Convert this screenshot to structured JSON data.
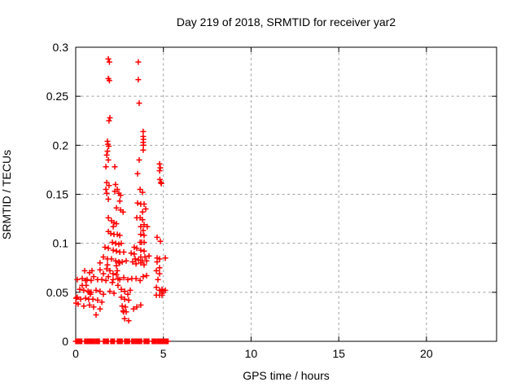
{
  "colors": {
    "marker": "#ff0000",
    "grid": "#a0a0a0",
    "border": "#000000",
    "background": "#ffffff"
  },
  "chart_data": {
    "type": "scatter",
    "title": "Day 219 of 2018, SRMTID for receiver yar2",
    "xlabel": "GPS time / hours",
    "ylabel": "SRMTID / TECUs",
    "xlim": [
      0,
      24
    ],
    "ylim": [
      0,
      0.3
    ],
    "grid": true,
    "legend": "none",
    "marker": "plus",
    "xticks": {
      "values": [
        0,
        5,
        10,
        15,
        20
      ],
      "labels": [
        "0",
        "5",
        "10",
        "15",
        "20"
      ]
    },
    "yticks": {
      "values": [
        0,
        0.05,
        0.1,
        0.15,
        0.2,
        0.25,
        0.3
      ],
      "labels": [
        "0",
        "0.05",
        "0.1",
        "0.15",
        "0.2",
        "0.25",
        "0.3"
      ]
    },
    "points": [
      [
        1.86,
        0.288
      ],
      [
        1.92,
        0.285
      ],
      [
        3.57,
        0.285
      ],
      [
        1.86,
        0.268
      ],
      [
        1.92,
        0.266
      ],
      [
        3.57,
        0.267
      ],
      [
        3.62,
        0.243
      ],
      [
        1.95,
        0.228
      ],
      [
        1.9,
        0.225
      ],
      [
        1.81,
        0.204
      ],
      [
        1.84,
        0.201
      ],
      [
        1.88,
        0.199
      ],
      [
        3.85,
        0.214
      ],
      [
        3.85,
        0.209
      ],
      [
        3.86,
        0.206
      ],
      [
        3.85,
        0.203
      ],
      [
        3.86,
        0.2
      ],
      [
        3.85,
        0.195
      ],
      [
        1.81,
        0.194
      ],
      [
        1.77,
        0.19
      ],
      [
        1.86,
        0.185
      ],
      [
        3.62,
        0.185
      ],
      [
        1.72,
        0.178
      ],
      [
        2.23,
        0.178
      ],
      [
        4.78,
        0.181
      ],
      [
        4.83,
        0.177
      ],
      [
        4.78,
        0.174
      ],
      [
        3.53,
        0.171
      ],
      [
        4.8,
        0.165
      ],
      [
        4.85,
        0.162
      ],
      [
        4.89,
        0.161
      ],
      [
        1.77,
        0.162
      ],
      [
        1.9,
        0.159
      ],
      [
        2.27,
        0.16
      ],
      [
        1.72,
        0.155
      ],
      [
        2.37,
        0.155
      ],
      [
        3.67,
        0.155
      ],
      [
        1.77,
        0.151
      ],
      [
        2.23,
        0.153
      ],
      [
        2.46,
        0.151
      ],
      [
        2.56,
        0.149
      ],
      [
        3.81,
        0.152
      ],
      [
        1.86,
        0.145
      ],
      [
        2.51,
        0.143
      ],
      [
        2.32,
        0.136
      ],
      [
        2.56,
        0.134
      ],
      [
        2.7,
        0.132
      ],
      [
        3.53,
        0.141
      ],
      [
        3.71,
        0.14
      ],
      [
        3.9,
        0.14
      ],
      [
        3.99,
        0.135
      ],
      [
        3.81,
        0.132
      ],
      [
        1.86,
        0.126
      ],
      [
        2.04,
        0.123
      ],
      [
        2.18,
        0.121
      ],
      [
        2.32,
        0.12
      ],
      [
        2.14,
        0.117
      ],
      [
        3.48,
        0.126
      ],
      [
        3.67,
        0.126
      ],
      [
        3.81,
        0.124
      ],
      [
        3.9,
        0.119
      ],
      [
        4.08,
        0.117
      ],
      [
        3.71,
        0.117
      ],
      [
        1.86,
        0.112
      ],
      [
        2.0,
        0.11
      ],
      [
        2.18,
        0.109
      ],
      [
        2.37,
        0.109
      ],
      [
        2.51,
        0.108
      ],
      [
        3.85,
        0.113
      ],
      [
        3.71,
        0.109
      ],
      [
        3.9,
        0.108
      ],
      [
        4.64,
        0.106
      ],
      [
        2.09,
        0.101
      ],
      [
        2.28,
        0.1
      ],
      [
        2.46,
        0.099
      ],
      [
        2.6,
        0.1
      ],
      [
        3.76,
        0.101
      ],
      [
        3.67,
        0.101
      ],
      [
        3.9,
        0.101
      ],
      [
        4.83,
        0.102
      ],
      [
        1.67,
        0.096
      ],
      [
        1.86,
        0.095
      ],
      [
        2.14,
        0.093
      ],
      [
        2.32,
        0.092
      ],
      [
        2.51,
        0.091
      ],
      [
        2.74,
        0.091
      ],
      [
        3.34,
        0.096
      ],
      [
        3.48,
        0.095
      ],
      [
        3.71,
        0.093
      ],
      [
        3.9,
        0.092
      ],
      [
        1.58,
        0.086
      ],
      [
        1.81,
        0.084
      ],
      [
        2.04,
        0.084
      ],
      [
        2.28,
        0.082
      ],
      [
        2.46,
        0.081
      ],
      [
        2.65,
        0.081
      ],
      [
        2.88,
        0.082
      ],
      [
        3.16,
        0.09
      ],
      [
        3.34,
        0.089
      ],
      [
        3.39,
        0.084
      ],
      [
        3.58,
        0.083
      ],
      [
        3.81,
        0.082
      ],
      [
        4.04,
        0.082
      ],
      [
        3.71,
        0.086
      ],
      [
        3.95,
        0.086
      ],
      [
        4.18,
        0.087
      ],
      [
        4.64,
        0.085
      ],
      [
        4.78,
        0.084
      ],
      [
        5.11,
        0.085
      ],
      [
        1.39,
        0.08
      ],
      [
        1.81,
        0.078
      ],
      [
        2.32,
        0.077
      ],
      [
        2.51,
        0.08
      ],
      [
        3.25,
        0.081
      ],
      [
        3.44,
        0.079
      ],
      [
        3.71,
        0.08
      ],
      [
        3.9,
        0.078
      ],
      [
        4.64,
        0.081
      ],
      [
        4.78,
        0.075
      ],
      [
        0.51,
        0.072
      ],
      [
        0.93,
        0.072
      ],
      [
        1.39,
        0.073
      ],
      [
        1.77,
        0.074
      ],
      [
        2.37,
        0.072
      ],
      [
        4.6,
        0.072
      ],
      [
        4.69,
        0.063
      ],
      [
        4.78,
        0.069
      ],
      [
        0.37,
        0.064
      ],
      [
        0.09,
        0.063
      ],
      [
        0.65,
        0.063
      ],
      [
        0.88,
        0.062
      ],
      [
        1.25,
        0.063
      ],
      [
        1.49,
        0.063
      ],
      [
        1.86,
        0.066
      ],
      [
        2.13,
        0.063
      ],
      [
        2.41,
        0.064
      ],
      [
        1.58,
        0.069
      ],
      [
        1.95,
        0.072
      ],
      [
        2.13,
        0.069
      ],
      [
        2.32,
        0.068
      ],
      [
        1.72,
        0.062
      ],
      [
        2.09,
        0.06
      ],
      [
        2.51,
        0.063
      ],
      [
        2.74,
        0.065
      ],
      [
        2.97,
        0.063
      ],
      [
        3.2,
        0.064
      ],
      [
        3.44,
        0.064
      ],
      [
        3.67,
        0.062
      ],
      [
        3.85,
        0.066
      ],
      [
        4.04,
        0.067
      ],
      [
        0.79,
        0.07
      ],
      [
        1.02,
        0.066
      ],
      [
        0.56,
        0.062
      ],
      [
        0.37,
        0.057
      ],
      [
        0.6,
        0.057
      ],
      [
        2.41,
        0.057
      ],
      [
        0.23,
        0.053
      ],
      [
        0.46,
        0.052
      ],
      [
        0.7,
        0.051
      ],
      [
        0.79,
        0.05
      ],
      [
        0.84,
        0.048
      ],
      [
        0.88,
        0.05
      ],
      [
        1.16,
        0.052
      ],
      [
        1.39,
        0.051
      ],
      [
        1.58,
        0.048
      ],
      [
        1.95,
        0.051
      ],
      [
        2.18,
        0.049
      ],
      [
        2.6,
        0.053
      ],
      [
        2.79,
        0.051
      ],
      [
        2.97,
        0.048
      ],
      [
        3.11,
        0.052
      ],
      [
        4.6,
        0.055
      ],
      [
        4.78,
        0.052
      ],
      [
        4.92,
        0.053
      ],
      [
        4.92,
        0.049
      ],
      [
        4.92,
        0.047
      ],
      [
        4.97,
        0.051
      ],
      [
        5.11,
        0.052
      ],
      [
        0.09,
        0.045
      ],
      [
        0.02,
        0.044
      ],
      [
        0.02,
        0.039
      ],
      [
        0.28,
        0.043
      ],
      [
        0.56,
        0.044
      ],
      [
        0.74,
        0.043
      ],
      [
        0.98,
        0.043
      ],
      [
        1.25,
        0.042
      ],
      [
        1.49,
        0.04
      ],
      [
        2.6,
        0.045
      ],
      [
        2.79,
        0.043
      ],
      [
        3.02,
        0.042
      ],
      [
        0.14,
        0.038
      ],
      [
        0.46,
        0.036
      ],
      [
        0.79,
        0.037
      ],
      [
        1.02,
        0.035
      ],
      [
        1.39,
        0.033
      ],
      [
        2.65,
        0.036
      ],
      [
        2.83,
        0.035
      ],
      [
        2.7,
        0.031
      ],
      [
        2.74,
        0.03
      ],
      [
        2.88,
        0.03
      ],
      [
        3.3,
        0.033
      ],
      [
        3.48,
        0.035
      ],
      [
        3.71,
        0.037
      ],
      [
        4.6,
        0.047
      ],
      [
        4.78,
        0.047
      ],
      [
        1.16,
        0.027
      ],
      [
        2.79,
        0.023
      ],
      [
        3.02,
        0.021
      ]
    ],
    "zero_row_segments": [
      [
        0.0,
        0.37
      ],
      [
        0.51,
        1.39
      ],
      [
        1.58,
        1.9
      ],
      [
        2.0,
        2.23
      ],
      [
        2.37,
        2.65
      ],
      [
        2.79,
        3.11
      ],
      [
        3.2,
        3.81
      ],
      [
        3.9,
        4.18
      ],
      [
        4.36,
        4.46
      ],
      [
        4.5,
        5.29
      ]
    ],
    "zero_row_value": 0
  }
}
